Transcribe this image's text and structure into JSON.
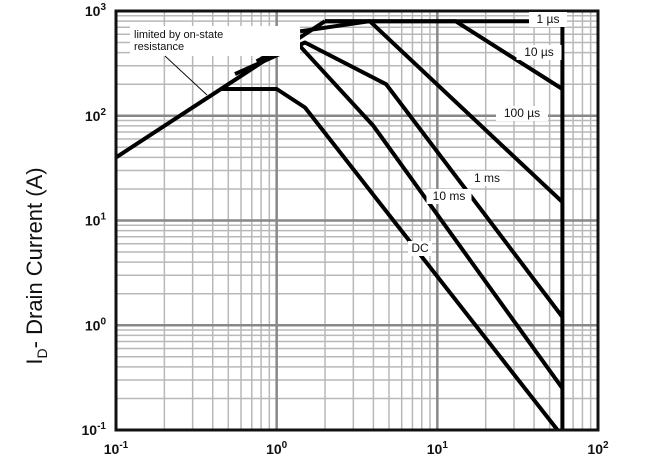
{
  "chart_data": {
    "type": "line",
    "title": "",
    "xlabel": "",
    "ylabel": "I",
    "ylabel_sub": "D",
    "ylabel_rest": "- Drain Current (A)",
    "x_scale": "log",
    "y_scale": "log",
    "xlim": [
      0.1,
      100
    ],
    "ylim": [
      0.1,
      1000
    ],
    "grid": true,
    "x_ticks": [
      {
        "value": 0.1,
        "base": "10",
        "exp": "-1"
      },
      {
        "value": 1,
        "base": "10",
        "exp": "0"
      },
      {
        "value": 10,
        "base": "10",
        "exp": "1"
      },
      {
        "value": 100,
        "base": "10",
        "exp": "2"
      }
    ],
    "y_ticks": [
      {
        "value": 0.1,
        "base": "10",
        "exp": "-1"
      },
      {
        "value": 1,
        "base": "10",
        "exp": "0"
      },
      {
        "value": 10,
        "base": "10",
        "exp": "1"
      },
      {
        "value": 100,
        "base": "10",
        "exp": "2"
      },
      {
        "value": 1000,
        "base": "10",
        "exp": "3"
      }
    ],
    "series": [
      {
        "label": "limited by on-state resistance",
        "x": [
          0.1,
          2.0
        ],
        "y": [
          40,
          800
        ]
      },
      {
        "label": "1 µs",
        "x": [
          2.0,
          60,
          60
        ],
        "y": [
          800,
          800,
          0.1
        ]
      },
      {
        "label": "10 µs",
        "x": [
          2.0,
          13,
          60
        ],
        "y": [
          800,
          800,
          180
        ]
      },
      {
        "label": "100 µs",
        "x": [
          1.4,
          3.8,
          60
        ],
        "y": [
          640,
          800,
          15
        ]
      },
      {
        "label": "1 ms",
        "x": [
          0.55,
          1.5,
          4.8,
          60
        ],
        "y": [
          250,
          500,
          200,
          1.2
        ]
      },
      {
        "label": "10 ms",
        "x": [
          0.75,
          1.3,
          4.0,
          60
        ],
        "y": [
          330,
          520,
          80,
          0.25
        ]
      },
      {
        "label": "DC",
        "x": [
          0.45,
          1.0,
          1.5,
          56
        ],
        "y": [
          180,
          180,
          120,
          0.1
        ]
      }
    ],
    "curve_labels": [
      "1 µs",
      "10 µs",
      "100 µs",
      "1 ms",
      "10 ms",
      "DC"
    ],
    "annotation": {
      "line1": "limited by on-state",
      "line2": "resistance"
    }
  }
}
